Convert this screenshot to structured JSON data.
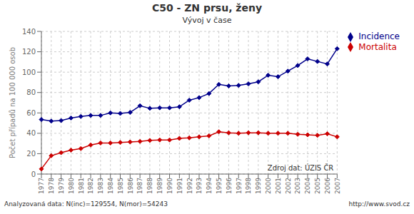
{
  "chart_data": {
    "type": "line",
    "title": "C50 - ZN prsu, ženy",
    "subtitle": "Vývoj v čase",
    "y_label": "Počet případů na 100 000 osob",
    "annotations": [
      "Zdroj dat: ÚZIS ČR",
      "Analyzovaná data: N(inc)=129554, N(mor)=54243",
      "http://www.svod.cz"
    ],
    "categories": [
      "1977",
      "1978",
      "1979",
      "1980",
      "1981",
      "1982",
      "1983",
      "1984",
      "1985",
      "1986",
      "1987",
      "1988",
      "1989",
      "1990",
      "1991",
      "1992",
      "1993",
      "1994",
      "1995",
      "1996",
      "1997",
      "1998",
      "1999",
      "2000",
      "2001",
      "2002",
      "2003",
      "2004",
      "2005",
      "2006",
      "2007"
    ],
    "series": [
      {
        "name": "Incidence",
        "color": "#00008B",
        "marker": "diamond",
        "values": [
          53.5,
          52.0,
          52.5,
          55.0,
          56.5,
          57.5,
          57.5,
          60.0,
          59.5,
          60.5,
          67.0,
          64.5,
          65.0,
          65.0,
          66.0,
          72.5,
          75.0,
          79.0,
          88.0,
          86.5,
          87.0,
          88.5,
          90.5,
          97.0,
          95.5,
          101.0,
          106.5,
          113.0,
          110.5,
          108.0,
          123.0
        ]
      },
      {
        "name": "Mortalita",
        "color": "#CC0000",
        "marker": "diamond",
        "values": [
          5.0,
          18.0,
          21.0,
          23.5,
          25.0,
          28.5,
          30.5,
          30.5,
          31.0,
          31.5,
          32.0,
          33.0,
          33.5,
          33.5,
          35.0,
          35.5,
          36.5,
          37.5,
          41.5,
          40.5,
          40.0,
          40.5,
          40.5,
          40.0,
          40.0,
          40.0,
          39.0,
          38.5,
          38.0,
          39.5,
          36.5
        ]
      }
    ],
    "ylim": [
      0,
      140
    ],
    "yticks": [
      0,
      20,
      40,
      60,
      80,
      100,
      120,
      140
    ],
    "grid": true,
    "legend": "right"
  }
}
